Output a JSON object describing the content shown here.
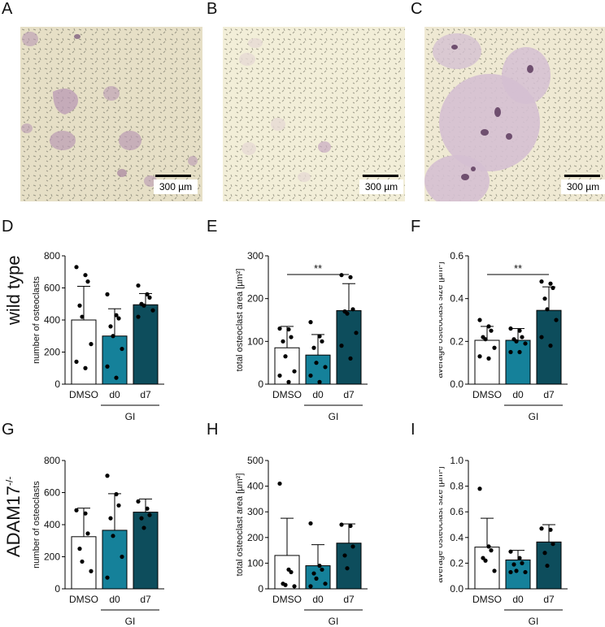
{
  "panels": {
    "A": "A",
    "B": "B",
    "C": "C",
    "D": "D",
    "E": "E",
    "F": "F",
    "G": "G",
    "H": "H",
    "I": "I"
  },
  "micrographs": [
    {
      "panel": "A",
      "scalebar": "300 µm"
    },
    {
      "panel": "B",
      "scalebar": "300 µm"
    },
    {
      "panel": "C",
      "scalebar": "300 µm"
    }
  ],
  "rows": {
    "wild_type": "wild type",
    "adam17": "ADAM17",
    "adam17_sup": "-/-"
  },
  "colors": {
    "dmso": "#ffffff",
    "d0": "#15819a",
    "d7": "#0d4d5c"
  },
  "chart_data": [
    {
      "panel": "D",
      "type": "bar",
      "categories": [
        "DMSO",
        "d0",
        "d7"
      ],
      "values": [
        400,
        300,
        495
      ],
      "errors": [
        210,
        170,
        70
      ],
      "points": [
        [
          730,
          680,
          640,
          490,
          420,
          250,
          140,
          100
        ],
        [
          560,
          430,
          410,
          360,
          300,
          220,
          110,
          40
        ],
        [
          615,
          560,
          540,
          500,
          490,
          460,
          420
        ]
      ],
      "group_label": "GI",
      "ylabel": "number of osteoclasts",
      "ylim": [
        0,
        800
      ],
      "yticks": [
        "0",
        "200",
        "400",
        "600",
        "800"
      ],
      "significance": null
    },
    {
      "panel": "E",
      "type": "bar",
      "categories": [
        "DMSO",
        "d0",
        "d7"
      ],
      "values": [
        85,
        68,
        172
      ],
      "errors": [
        50,
        48,
        63
      ],
      "points": [
        [
          130,
          128,
          110,
          100,
          65,
          30,
          20,
          5
        ],
        [
          145,
          112,
          100,
          85,
          50,
          40,
          20,
          5
        ],
        [
          255,
          250,
          175,
          170,
          165,
          120,
          90,
          60
        ]
      ],
      "group_label": "GI",
      "ylabel": "total osteoclast area [µm²]",
      "ylim": [
        0,
        300
      ],
      "yticks": [
        "0",
        "100",
        "200",
        "300"
      ],
      "significance": "**"
    },
    {
      "panel": "F",
      "type": "bar",
      "categories": [
        "DMSO",
        "d0",
        "d7"
      ],
      "values": [
        0.205,
        0.205,
        0.345
      ],
      "errors": [
        0.065,
        0.055,
        0.11
      ],
      "points": [
        [
          0.3,
          0.27,
          0.25,
          0.22,
          0.21,
          0.17,
          0.13,
          0.12
        ],
        [
          0.26,
          0.25,
          0.22,
          0.21,
          0.2,
          0.19,
          0.15,
          0.15
        ],
        [
          0.48,
          0.47,
          0.45,
          0.4,
          0.35,
          0.3,
          0.22,
          0.18
        ]
      ],
      "group_label": "GI",
      "ylabel": "average osteoclast size [µm²]",
      "ylim": [
        0,
        0.6
      ],
      "yticks": [
        "0.0",
        "0.2",
        "0.4",
        "0.6"
      ],
      "significance": "**"
    },
    {
      "panel": "G",
      "type": "bar",
      "categories": [
        "DMSO",
        "d0",
        "d7"
      ],
      "values": [
        325,
        365,
        478
      ],
      "errors": [
        178,
        228,
        82
      ],
      "points": [
        [
          490,
          470,
          345,
          250,
          170,
          110
        ],
        [
          705,
          590,
          520,
          440,
          330,
          200,
          70
        ],
        [
          545,
          500,
          460,
          440,
          380
        ]
      ],
      "group_label": "GI",
      "ylabel": "number of osteoclasts",
      "ylim": [
        0,
        800
      ],
      "yticks": [
        "0",
        "200",
        "400",
        "600",
        "800"
      ],
      "significance": null
    },
    {
      "panel": "H",
      "type": "bar",
      "categories": [
        "DMSO",
        "d0",
        "d7"
      ],
      "values": [
        130,
        90,
        178
      ],
      "errors": [
        145,
        82,
        75
      ],
      "points": [
        [
          410,
          75,
          65,
          20,
          15,
          10
        ],
        [
          255,
          90,
          75,
          60,
          40,
          20,
          10
        ],
        [
          250,
          245,
          165,
          130,
          80
        ]
      ],
      "group_label": "GI",
      "ylabel": "total osteoclast area [µm²]",
      "ylim": [
        0,
        500
      ],
      "yticks": [
        "0",
        "100",
        "200",
        "300",
        "400",
        "500"
      ],
      "significance": null
    },
    {
      "panel": "I",
      "type": "bar",
      "categories": [
        "DMSO",
        "d0",
        "d7"
      ],
      "values": [
        0.325,
        0.225,
        0.365
      ],
      "errors": [
        0.225,
        0.075,
        0.135
      ],
      "points": [
        [
          0.78,
          0.33,
          0.3,
          0.24,
          0.22,
          0.14
        ],
        [
          0.29,
          0.24,
          0.2,
          0.19,
          0.14,
          0.13,
          0.13
        ],
        [
          0.47,
          0.46,
          0.35,
          0.28,
          0.18
        ]
      ],
      "group_label": "GI",
      "ylabel": "average osteoclast size [µm²]",
      "ylim": [
        0,
        1.0
      ],
      "yticks": [
        "0.0",
        "0.2",
        "0.4",
        "0.6",
        "0.8",
        "1.0"
      ],
      "significance": null
    }
  ]
}
